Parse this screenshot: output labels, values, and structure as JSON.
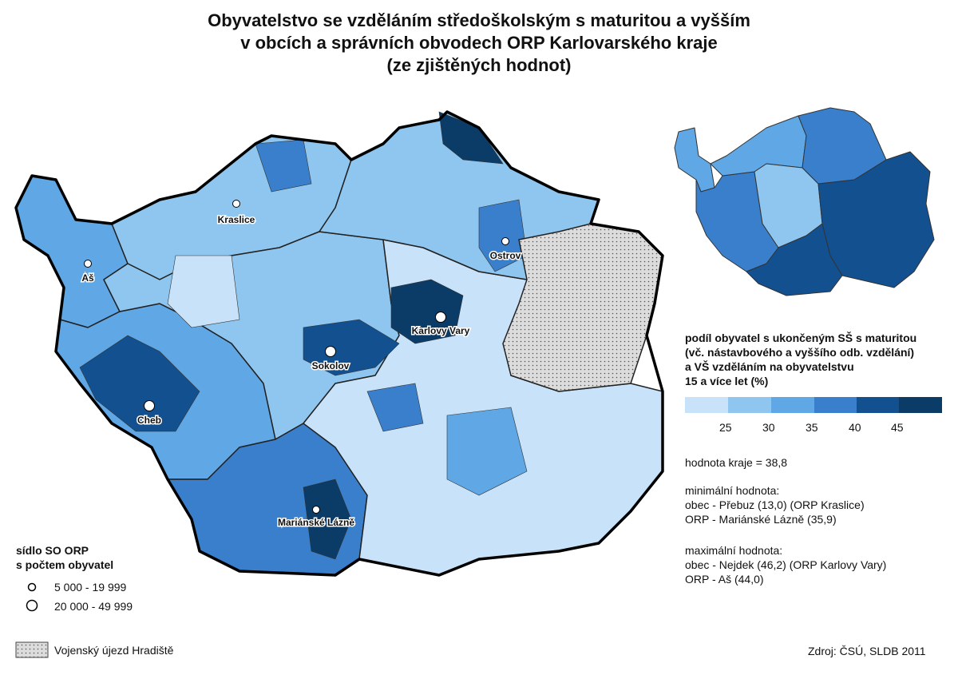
{
  "title": [
    "Obyvatelstvo se vzděláním středoškolským s maturitou a vyšším",
    "v obcích a správních obvodech ORP Karlovarského kraje",
    "(ze zjištěných hodnot)"
  ],
  "colors": {
    "c1": "#c8e3f9",
    "c2": "#8fc6ef",
    "c3": "#5fa7e5",
    "c4": "#3a7fcb",
    "c5": "#13508f",
    "c6": "#0b3b67",
    "military": "#dcdcdc"
  },
  "cities": [
    {
      "name": "Kraslice",
      "size": "small"
    },
    {
      "name": "Aš",
      "size": "small"
    },
    {
      "name": "Ostrov",
      "size": "small"
    },
    {
      "name": "Karlovy Vary",
      "size": "large"
    },
    {
      "name": "Sokolov",
      "size": "large"
    },
    {
      "name": "Cheb",
      "size": "large"
    },
    {
      "name": "Mariánské Lázně",
      "size": "small"
    }
  ],
  "legend": {
    "heading": [
      "podíl obyvatel s ukončeným SŠ s maturitou",
      "(vč. nástavbového a vyššího odb. vzdělání)",
      "a VŠ vzděláním na obyvatelstvu",
      "15 a více let (%)"
    ],
    "breaks": [
      "25",
      "30",
      "35",
      "40",
      "45"
    ],
    "region_value": "hodnota kraje = 38,8",
    "min_title": "minimální hodnota:",
    "min_obec": "obec - Přebuz (13,0) (ORP Kraslice)",
    "min_orp": "ORP - Mariánské Lázně (35,9)",
    "max_title": "maximální hodnota:",
    "max_obec": "obec - Nejdek (46,2) (ORP Karlovy Vary)",
    "max_orp": "ORP - Aš (44,0)"
  },
  "settlements": {
    "heading": [
      "sídlo SO ORP",
      "s počtem obyvatel"
    ],
    "small": "5 000 - 19 999",
    "large": "20 000 - 49 999"
  },
  "military": "Vojenský újezd Hradiště",
  "source": "Zdroj: ČSÚ, SLDB 2011"
}
